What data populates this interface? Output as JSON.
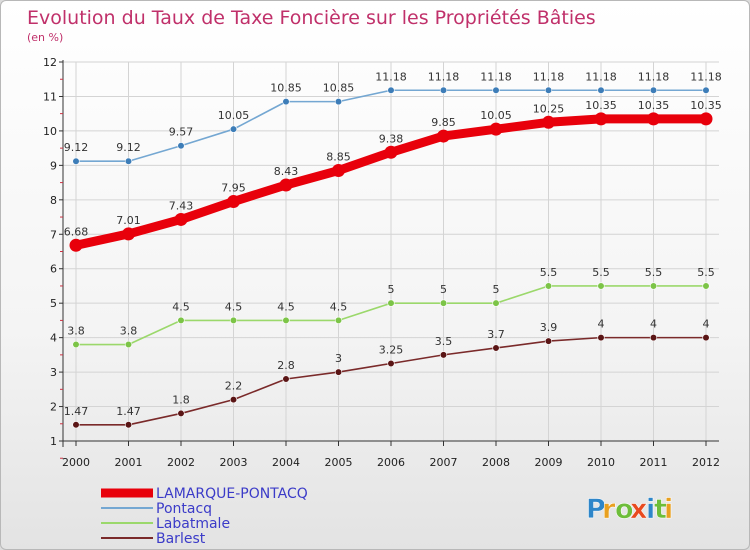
{
  "colors": {
    "title": "#c0306a",
    "legend_text": "#3b3bc8",
    "axis": "#333333",
    "grid": "#d4d4d4"
  },
  "logo": {
    "text": "Proxiti"
  },
  "chart_data": {
    "type": "line",
    "title": "Evolution du Taux de Taxe Foncière sur les Propriétés Bâties",
    "subtitle": "(en %)",
    "xlabel": "",
    "ylabel": "",
    "x": [
      "2000",
      "2001",
      "2002",
      "2003",
      "2004",
      "2005",
      "2006",
      "2007",
      "2008",
      "2009",
      "2010",
      "2011",
      "2012"
    ],
    "ylim": [
      1,
      12
    ],
    "yticks": [
      1,
      2,
      3,
      4,
      5,
      6,
      7,
      8,
      9,
      10,
      11,
      12
    ],
    "grid": true,
    "legend_position": "bottom-left",
    "series": [
      {
        "name": "LAMARQUE-PONTACQ",
        "color": "#e8000b",
        "marker_color": "#e8000b",
        "values": [
          6.68,
          7.01,
          7.43,
          7.95,
          8.43,
          8.85,
          9.38,
          9.85,
          10.05,
          10.25,
          10.35,
          10.35,
          10.35
        ],
        "labels": [
          "6.68",
          "7.01",
          "7.43",
          "7.95",
          "8.43",
          "8.85",
          "9.38",
          "9.85",
          "10.05",
          "10.25",
          "10.35",
          "10.35",
          "10.35"
        ]
      },
      {
        "name": "Pontacq",
        "color": "#74a7d2",
        "marker_color": "#3d7db8",
        "values": [
          9.12,
          9.12,
          9.57,
          10.05,
          10.85,
          10.85,
          11.18,
          11.18,
          11.18,
          11.18,
          11.18,
          11.18,
          11.18
        ],
        "labels": [
          "9.12",
          "9.12",
          "9.57",
          "10.05",
          "10.85",
          "10.85",
          "11.18",
          "11.18",
          "11.18",
          "11.18",
          "11.18",
          "11.18",
          "11.18"
        ]
      },
      {
        "name": "Labatmale",
        "color": "#9bd86b",
        "marker_color": "#7cc447",
        "values": [
          3.8,
          3.8,
          4.5,
          4.5,
          4.5,
          4.5,
          5,
          5,
          5,
          5.5,
          5.5,
          5.5,
          5.5
        ],
        "labels": [
          "3.8",
          "3.8",
          "4.5",
          "4.5",
          "4.5",
          "4.5",
          "5",
          "5",
          "5",
          "5.5",
          "5.5",
          "5.5",
          "5.5"
        ]
      },
      {
        "name": "Barlest",
        "color": "#7a2a2a",
        "marker_color": "#5a1515",
        "values": [
          1.47,
          1.47,
          1.8,
          2.2,
          2.8,
          3,
          3.25,
          3.5,
          3.7,
          3.9,
          4,
          4,
          4
        ],
        "labels": [
          "1.47",
          "1.47",
          "1.8",
          "2.2",
          "2.8",
          "3",
          "3.25",
          "3.5",
          "3.7",
          "3.9",
          "4",
          "4",
          "4"
        ]
      }
    ]
  }
}
